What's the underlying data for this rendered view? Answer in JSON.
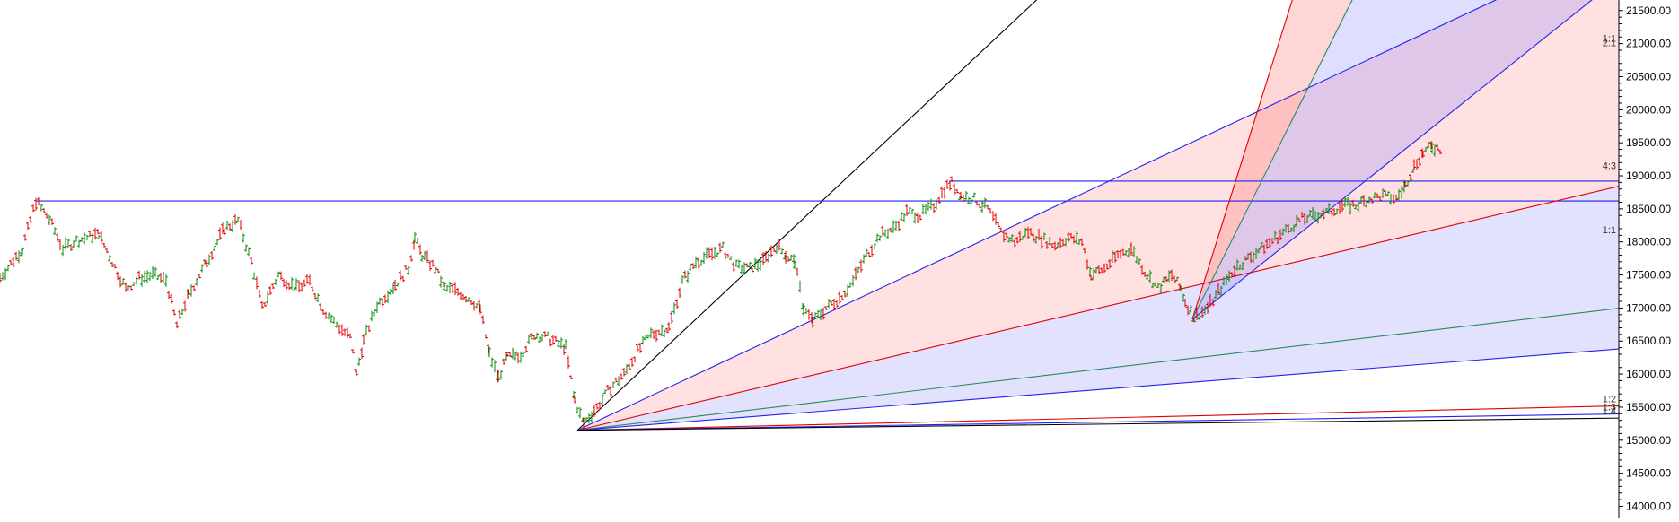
{
  "chart_data": {
    "type": "line",
    "title": "",
    "xlabel": "",
    "ylabel": "",
    "ylim": [
      13830,
      21660
    ],
    "y_ticks": [
      "21500.00",
      "21000.00",
      "20500.00",
      "20000.00",
      "19500.00",
      "19000.00",
      "18500.00",
      "18000.00",
      "17500.00",
      "17000.00",
      "16500.00",
      "16000.00",
      "15500.00",
      "15000.00",
      "14500.00",
      "14000.00"
    ],
    "grid": false,
    "price_series": {
      "name": "",
      "style": "ohlc-bars",
      "up_color": "#0a8a0a",
      "down_color": "#e00000",
      "points": [
        [
          0,
          17460
        ],
        [
          25,
          17900
        ],
        [
          40,
          18620
        ],
        [
          55,
          18340
        ],
        [
          70,
          17900
        ],
        [
          85,
          18020
        ],
        [
          100,
          18080
        ],
        [
          110,
          18120
        ],
        [
          125,
          17700
        ],
        [
          140,
          17290
        ],
        [
          155,
          17450
        ],
        [
          170,
          17500
        ],
        [
          185,
          17420
        ],
        [
          197,
          16740
        ],
        [
          210,
          17200
        ],
        [
          230,
          17700
        ],
        [
          250,
          18200
        ],
        [
          265,
          18330
        ],
        [
          280,
          17700
        ],
        [
          292,
          17000
        ],
        [
          310,
          17500
        ],
        [
          330,
          17300
        ],
        [
          345,
          17400
        ],
        [
          360,
          16980
        ],
        [
          375,
          16750
        ],
        [
          390,
          16550
        ],
        [
          397,
          16000
        ],
        [
          405,
          16500
        ],
        [
          420,
          17050
        ],
        [
          440,
          17350
        ],
        [
          455,
          17600
        ],
        [
          462,
          18060
        ],
        [
          470,
          17800
        ],
        [
          485,
          17600
        ],
        [
          495,
          17300
        ],
        [
          510,
          17250
        ],
        [
          525,
          17120
        ],
        [
          535,
          16980
        ],
        [
          545,
          16300
        ],
        [
          555,
          15950
        ],
        [
          565,
          16250
        ],
        [
          580,
          16300
        ],
        [
          595,
          16600
        ],
        [
          610,
          16550
        ],
        [
          630,
          16400
        ],
        [
          640,
          15600
        ],
        [
          650,
          15250
        ],
        [
          665,
          15500
        ],
        [
          680,
          15800
        ],
        [
          695,
          16000
        ],
        [
          710,
          16350
        ],
        [
          725,
          16600
        ],
        [
          745,
          16700
        ],
        [
          760,
          17400
        ],
        [
          775,
          17700
        ],
        [
          790,
          17800
        ],
        [
          805,
          17900
        ],
        [
          820,
          17620
        ],
        [
          835,
          17600
        ],
        [
          850,
          17700
        ],
        [
          865,
          17950
        ],
        [
          875,
          17800
        ],
        [
          885,
          17700
        ],
        [
          895,
          17000
        ],
        [
          905,
          16800
        ],
        [
          920,
          17000
        ],
        [
          935,
          17150
        ],
        [
          950,
          17400
        ],
        [
          965,
          17800
        ],
        [
          980,
          18100
        ],
        [
          995,
          18200
        ],
        [
          1010,
          18450
        ],
        [
          1025,
          18400
        ],
        [
          1040,
          18550
        ],
        [
          1052,
          18800
        ],
        [
          1060,
          18900
        ],
        [
          1070,
          18700
        ],
        [
          1085,
          18650
        ],
        [
          1100,
          18500
        ],
        [
          1115,
          18150
        ],
        [
          1130,
          18000
        ],
        [
          1145,
          18150
        ],
        [
          1160,
          18050
        ],
        [
          1175,
          17950
        ],
        [
          1190,
          18070
        ],
        [
          1205,
          18000
        ],
        [
          1215,
          17500
        ],
        [
          1230,
          17600
        ],
        [
          1245,
          17800
        ],
        [
          1260,
          17900
        ],
        [
          1275,
          17550
        ],
        [
          1290,
          17300
        ],
        [
          1305,
          17500
        ],
        [
          1315,
          17300
        ],
        [
          1320,
          17100
        ],
        [
          1330,
          16850
        ],
        [
          1345,
          17000
        ],
        [
          1360,
          17300
        ],
        [
          1375,
          17600
        ],
        [
          1390,
          17750
        ],
        [
          1405,
          17900
        ],
        [
          1420,
          18050
        ],
        [
          1435,
          18200
        ],
        [
          1450,
          18350
        ],
        [
          1465,
          18400
        ],
        [
          1480,
          18450
        ],
        [
          1495,
          18550
        ],
        [
          1510,
          18550
        ],
        [
          1525,
          18650
        ],
        [
          1540,
          18700
        ],
        [
          1555,
          18650
        ],
        [
          1565,
          18850
        ],
        [
          1575,
          19150
        ],
        [
          1585,
          19350
        ],
        [
          1595,
          19450
        ],
        [
          1605,
          19400
        ]
      ]
    },
    "horizontal_lines": [
      {
        "value": 18620,
        "color": "#2222ee",
        "x_start": 40
      },
      {
        "value": 18920,
        "color": "#2222ee",
        "x_start": 1057
      }
    ],
    "fans": [
      {
        "name": "fan-a",
        "origin_x": 643,
        "origin_value": 15150,
        "unit_slope": 0.2345,
        "lines": [
          {
            "ratio": 4,
            "color": "#000000",
            "label": ""
          },
          {
            "ratio": 2,
            "color": "#2222ee",
            "label": ""
          },
          {
            "ratio": 1,
            "color": "#e00000",
            "label": ""
          },
          {
            "ratio": 0.5,
            "color": "#2a8a5a",
            "label": ""
          },
          {
            "ratio": 0.3333,
            "color": "#2222ee",
            "label": ""
          },
          {
            "ratio": 0.1,
            "color": "#e00000",
            "label": "1:2"
          },
          {
            "ratio": 0.0667,
            "color": "#2222ee",
            "label": "1:3"
          },
          {
            "ratio": 0.05,
            "color": "#000000",
            "label": "1:4"
          }
        ],
        "fills": [
          {
            "from": 2,
            "to": 1,
            "color": "#ff6b6b",
            "opacity": 0.2
          },
          {
            "from": 1,
            "to": 0.3333,
            "color": "#7b7bff",
            "opacity": 0.22
          }
        ]
      },
      {
        "name": "fan-b",
        "origin_x": 1328,
        "origin_value": 16830,
        "unit_slope": 0.8,
        "lines": [
          {
            "ratio": 4,
            "color": "#e00000",
            "label": ""
          },
          {
            "ratio": 2.5,
            "color": "#2a8a5a",
            "label": ""
          },
          {
            "ratio": 1,
            "color": "#2222ee",
            "label": ""
          }
        ],
        "fills": [
          {
            "from": 4,
            "to": 2.5,
            "color": "#ff6b6b",
            "opacity": 0.28
          },
          {
            "from": 2.5,
            "to": 1,
            "color": "#7b7bff",
            "opacity": 0.25
          }
        ]
      }
    ],
    "annotations": [
      {
        "text": "1:1",
        "value": 21030
      },
      {
        "text": "2:1",
        "value": 20960
      },
      {
        "text": "4:3",
        "value": 19100
      },
      {
        "text": "1:1",
        "value": 18130
      }
    ]
  }
}
